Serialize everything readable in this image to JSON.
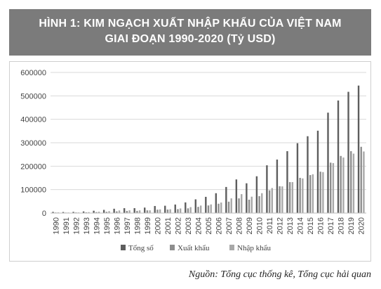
{
  "title": {
    "line1": "HÌNH 1: KIM NGẠCH XUẤT NHẬP KHẨU CỦA VIỆT NAM",
    "line2": "GIAI ĐOẠN 1990-2020 (Tỷ USD)"
  },
  "source": "Nguồn: Tổng cục thống kê, Tổng cục hải quan",
  "colors": {
    "title_bg": "#7b7b7b",
    "total": "#5e5e5e",
    "export": "#8d8d8d",
    "import": "#a8a8a8"
  },
  "chart_data": {
    "type": "bar",
    "categories": [
      "1990",
      "1991",
      "1992",
      "1993",
      "1994",
      "1995",
      "1996",
      "1997",
      "1998",
      "1999",
      "2000",
      "2001",
      "2002",
      "2003",
      "2004",
      "2005",
      "2006",
      "2007",
      "2008",
      "2009",
      "2010",
      "2011",
      "2012",
      "2013",
      "2014",
      "2015",
      "2016",
      "2017",
      "2018",
      "2019",
      "2020"
    ],
    "series": [
      {
        "name": "Tổng số",
        "values": [
          5100,
          4400,
          5100,
          6900,
          9900,
          13600,
          18400,
          20800,
          20900,
          23300,
          30100,
          31200,
          36400,
          45400,
          58500,
          69200,
          84700,
          111300,
          143400,
          127000,
          157000,
          203700,
          228300,
          264000,
          298000,
          327800,
          351400,
          428300,
          480200,
          517300,
          543900
        ]
      },
      {
        "name": "Xuất khẩu",
        "values": [
          2400,
          2100,
          2600,
          3000,
          4100,
          5400,
          7300,
          9200,
          9400,
          11500,
          14500,
          15000,
          16700,
          20100,
          26500,
          32400,
          39800,
          48600,
          62700,
          57100,
          72200,
          96900,
          114500,
          132000,
          150200,
          162000,
          176600,
          215100,
          243700,
          264200,
          282700
        ]
      },
      {
        "name": "Nhập khẩu",
        "values": [
          2800,
          2300,
          2500,
          3900,
          5800,
          8200,
          11100,
          11600,
          11500,
          11700,
          15600,
          16200,
          19700,
          25300,
          32000,
          36800,
          44900,
          62700,
          80700,
          69900,
          84800,
          106800,
          113800,
          132000,
          147800,
          165600,
          174800,
          213200,
          236900,
          253500,
          262700
        ]
      }
    ],
    "ylim": [
      0,
      600000
    ],
    "yticks": [
      "0",
      "100000",
      "200000",
      "300000",
      "400000",
      "500000",
      "600000"
    ],
    "grid": true,
    "legend_position": "bottom"
  }
}
